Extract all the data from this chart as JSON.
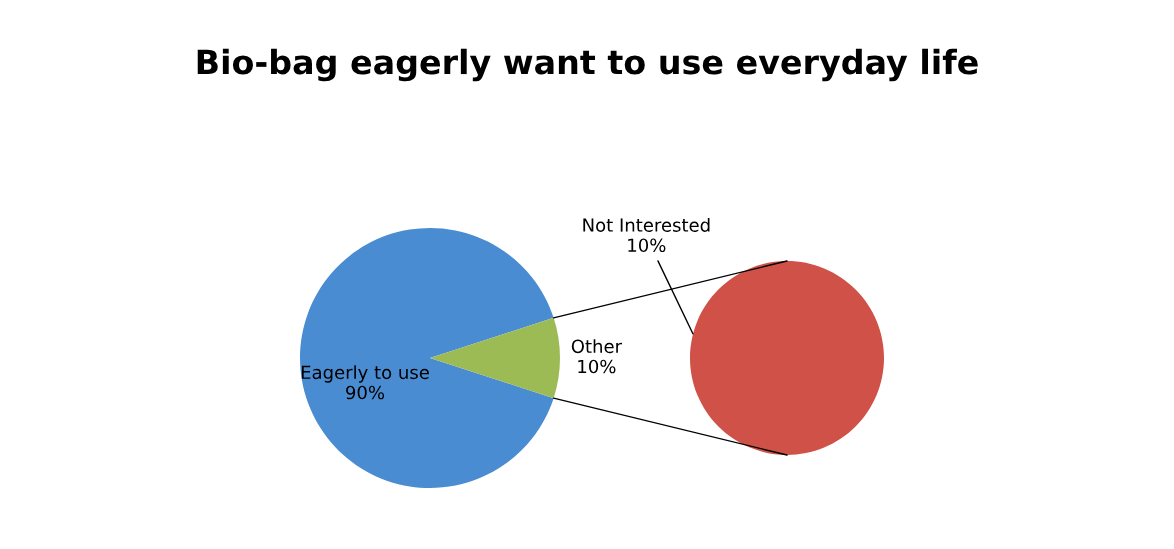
{
  "chart_data": [
    {
      "type": "pie",
      "title": "Bio-bag eagerly want to use everyday life",
      "categories": [
        "Eagerly to use",
        "Other"
      ],
      "values": [
        90,
        10
      ],
      "value_labels": [
        "90%",
        "10%"
      ],
      "colors": [
        "#4a8cd2",
        "#9dbb55"
      ]
    },
    {
      "type": "other",
      "categories": [
        "Not Interested"
      ],
      "values": [
        10
      ],
      "value_labels": [
        "10%"
      ],
      "colors": [
        "#cf5147"
      ]
    }
  ]
}
